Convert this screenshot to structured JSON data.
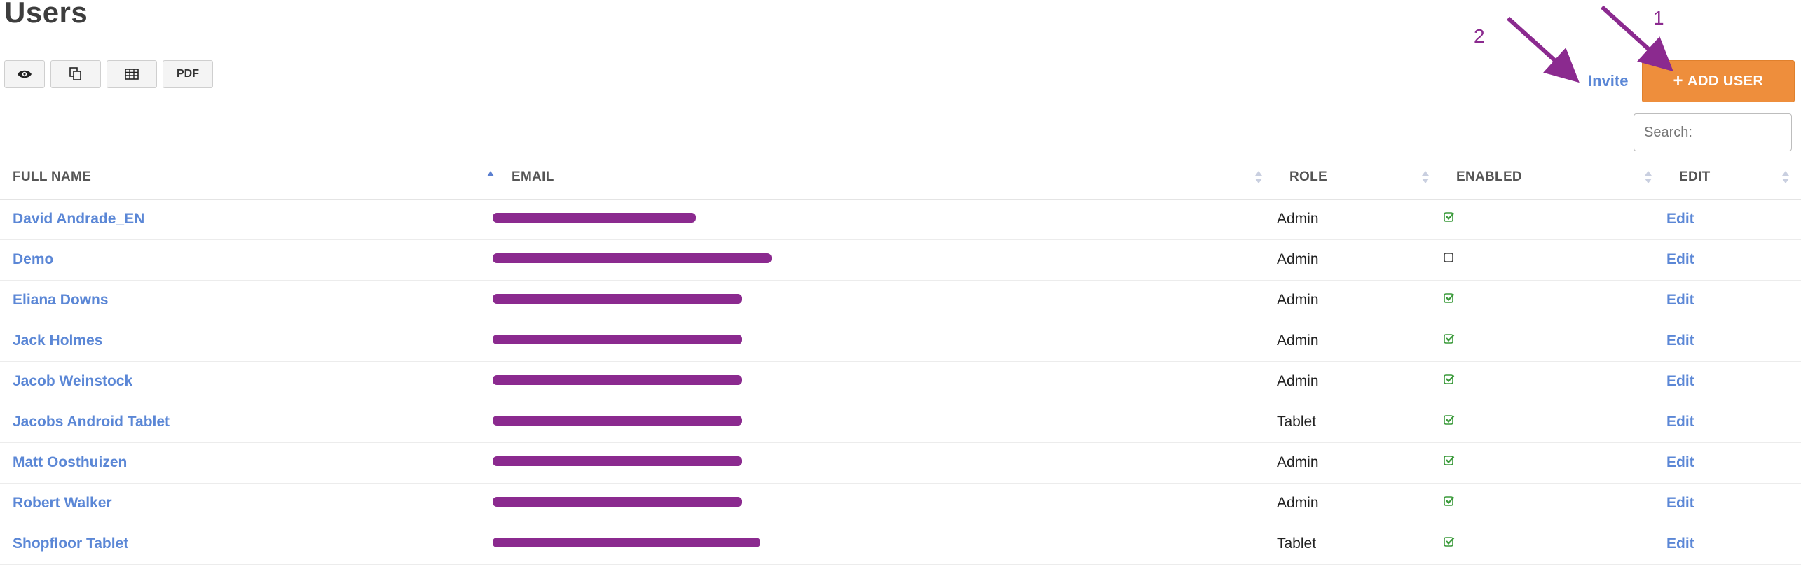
{
  "page": {
    "title": "Users"
  },
  "toolbar": {
    "view_icon": "eye-icon",
    "copy_icon": "copy-icon",
    "csv_icon": "table-icon",
    "pdf_label": "PDF"
  },
  "actions": {
    "invite_label": "Invite",
    "add_user_label": "ADD USER",
    "add_user_icon": "+",
    "accent_color": "#ee8e3c",
    "link_color": "#5b87d6"
  },
  "search": {
    "placeholder": "Search:",
    "value": ""
  },
  "annotations": {
    "label_1": "1",
    "label_2": "2",
    "color": "#8b2a8f"
  },
  "table": {
    "columns": [
      "FULL NAME",
      "EMAIL",
      "ROLE",
      "ENABLED",
      "EDIT"
    ],
    "sort_column": "FULL NAME",
    "sort_direction": "ascending",
    "rows": [
      {
        "name": "David Andrade_EN",
        "role": "Admin",
        "enabled": true,
        "action": "Edit"
      },
      {
        "name": "Demo",
        "role": "Admin",
        "enabled": false,
        "action": "Edit"
      },
      {
        "name": "Eliana Downs",
        "role": "Admin",
        "enabled": true,
        "action": "Edit"
      },
      {
        "name": "Jack Holmes",
        "role": "Admin",
        "enabled": true,
        "action": "Edit"
      },
      {
        "name": "Jacob Weinstock",
        "role": "Admin",
        "enabled": true,
        "action": "Edit"
      },
      {
        "name": "Jacobs Android Tablet",
        "role": "Tablet",
        "enabled": true,
        "action": "Edit"
      },
      {
        "name": "Matt Oosthuizen",
        "role": "Admin",
        "enabled": true,
        "action": "Edit"
      },
      {
        "name": "Robert Walker",
        "role": "Admin",
        "enabled": true,
        "action": "Edit"
      },
      {
        "name": "Shopfloor Tablet",
        "role": "Tablet",
        "enabled": true,
        "action": "Edit"
      }
    ]
  }
}
